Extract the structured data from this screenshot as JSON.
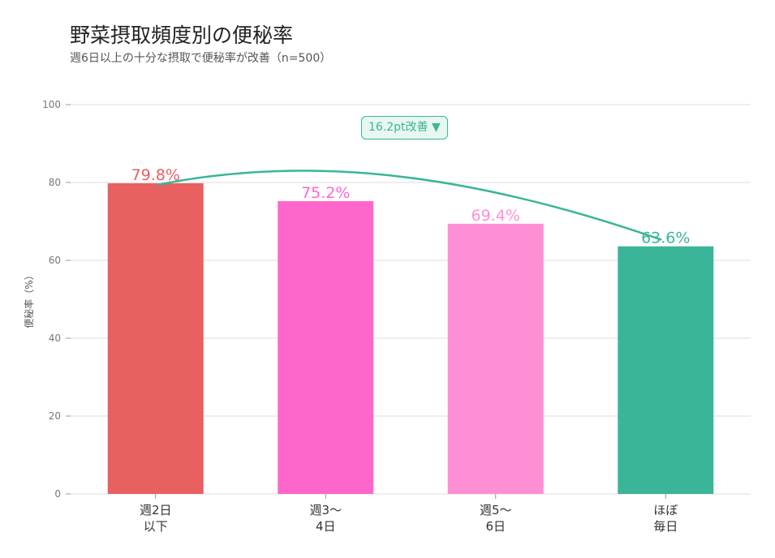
{
  "title": "野菜摂取頻度別の便秘率",
  "subtitle": "週6日以上の十分な摂取で便秘率が改善（n=500）",
  "annotation": "16.2pt改善 ▼",
  "chart_data": {
    "type": "bar",
    "title": "野菜摂取頻度別の便秘率",
    "ylabel": "便秘率（%）",
    "xlabel": "",
    "ylim": [
      0,
      100
    ],
    "yticks": [
      0,
      20,
      40,
      60,
      80,
      100
    ],
    "grid": true,
    "categories": [
      [
        "週2日",
        "以下"
      ],
      [
        "週3〜",
        "4日"
      ],
      [
        "週5〜",
        "6日"
      ],
      [
        "ほぼ",
        "毎日"
      ]
    ],
    "values": [
      79.8,
      75.2,
      69.4,
      63.6
    ],
    "data_labels": [
      "79.8%",
      "75.2%",
      "69.4%",
      "63.6%"
    ],
    "colors": [
      "#E86060",
      "#FF66CC",
      "#FF8FD4",
      "#3BB598"
    ],
    "trend_color": "#3BB598"
  }
}
